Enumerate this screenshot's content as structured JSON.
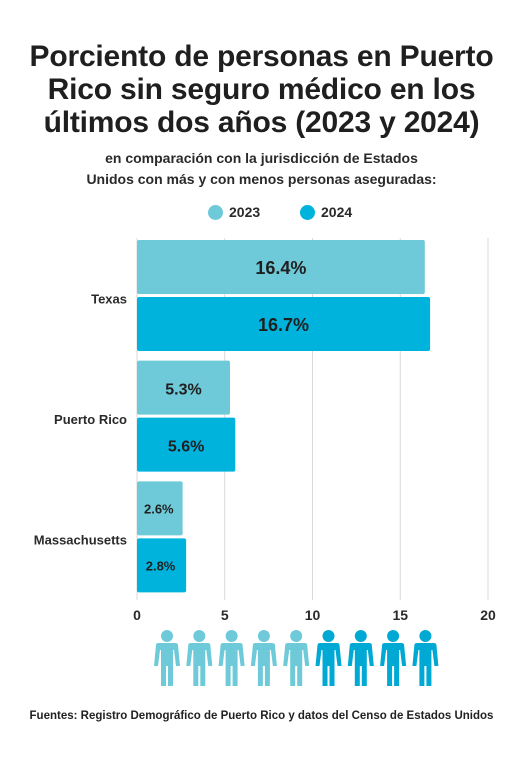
{
  "title": "Porciento de personas en Puerto Rico sin seguro médico en los últimos dos años (2023 y 2024)",
  "subtitle_line1": "en comparación con la jurisdicción de Estados",
  "subtitle_line2": "Unidos con más y con menos personas aseguradas:",
  "source": "Fuentes: Registro Demográfico de Puerto Rico y datos del Censo de Estados Unidos",
  "colors": {
    "s2023": "#6ecad9",
    "s2024": "#00b3dd",
    "grid": "#d9d9d9",
    "person_light": "#6ecad9",
    "person_dark": "#00a9d4"
  },
  "chart_data": {
    "type": "bar",
    "orientation": "horizontal",
    "categories": [
      "Texas",
      "Puerto Rico",
      "Massachusetts"
    ],
    "series": [
      {
        "name": "2023",
        "values": [
          16.4,
          5.3,
          2.6
        ],
        "labels": [
          "16.4%",
          "5.3%",
          "2.6%"
        ]
      },
      {
        "name": "2024",
        "values": [
          16.7,
          5.6,
          2.8
        ],
        "labels": [
          "16.7%",
          "5.6%",
          "2.8%"
        ]
      }
    ],
    "xlim": [
      0,
      20
    ],
    "xticks": [
      0,
      5,
      10,
      15,
      20
    ],
    "grid": true,
    "legend": "top-center"
  },
  "pictogram": {
    "total": 9,
    "light_count": 5,
    "icon": "person-icon"
  }
}
